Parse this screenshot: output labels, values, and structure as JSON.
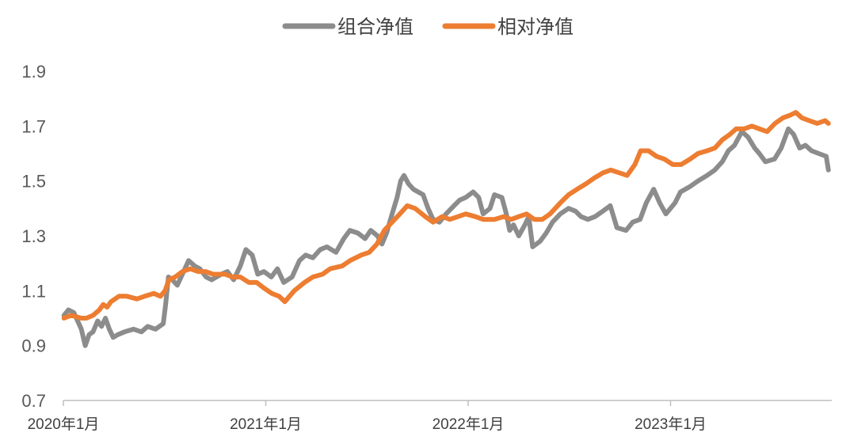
{
  "chart_data": {
    "type": "line",
    "title": "",
    "xlabel": "",
    "ylabel": "",
    "ylim": [
      0.7,
      1.9
    ],
    "yticks": [
      "0.7",
      "0.9",
      "1.1",
      "1.3",
      "1.5",
      "1.7",
      "1.9"
    ],
    "xrange": [
      "2020-01",
      "2023-10"
    ],
    "xticks": [
      {
        "label": "2020年1月",
        "date": "2020-01"
      },
      {
        "label": "2021年1月",
        "date": "2021-01"
      },
      {
        "label": "2022年1月",
        "date": "2022-01"
      },
      {
        "label": "2023年1月",
        "date": "2023-01"
      }
    ],
    "grid": false,
    "legend": "top-center",
    "series": [
      {
        "name": "组合净值",
        "color": "#8c8c8c",
        "points": [
          [
            "2020-01-02",
            1.01
          ],
          [
            "2020-01-10",
            1.03
          ],
          [
            "2020-01-20",
            1.02
          ],
          [
            "2020-02-03",
            0.96
          ],
          [
            "2020-02-10",
            0.9
          ],
          [
            "2020-02-17",
            0.94
          ],
          [
            "2020-02-24",
            0.95
          ],
          [
            "2020-03-02",
            0.99
          ],
          [
            "2020-03-09",
            0.97
          ],
          [
            "2020-03-16",
            1.0
          ],
          [
            "2020-03-23",
            0.96
          ],
          [
            "2020-03-30",
            0.93
          ],
          [
            "2020-04-08",
            0.94
          ],
          [
            "2020-04-20",
            0.95
          ],
          [
            "2020-05-06",
            0.96
          ],
          [
            "2020-05-20",
            0.95
          ],
          [
            "2020-06-01",
            0.97
          ],
          [
            "2020-06-15",
            0.96
          ],
          [
            "2020-06-29",
            0.98
          ],
          [
            "2020-07-03",
            1.05
          ],
          [
            "2020-07-08",
            1.15
          ],
          [
            "2020-07-15",
            1.14
          ],
          [
            "2020-07-24",
            1.12
          ],
          [
            "2020-08-05",
            1.17
          ],
          [
            "2020-08-14",
            1.21
          ],
          [
            "2020-08-25",
            1.19
          ],
          [
            "2020-09-04",
            1.18
          ],
          [
            "2020-09-15",
            1.15
          ],
          [
            "2020-09-25",
            1.14
          ],
          [
            "2020-10-12",
            1.16
          ],
          [
            "2020-10-23",
            1.17
          ],
          [
            "2020-11-04",
            1.14
          ],
          [
            "2020-11-16",
            1.19
          ],
          [
            "2020-11-26",
            1.25
          ],
          [
            "2020-12-07",
            1.23
          ],
          [
            "2020-12-17",
            1.16
          ],
          [
            "2020-12-28",
            1.17
          ],
          [
            "2021-01-11",
            1.15
          ],
          [
            "2021-01-22",
            1.18
          ],
          [
            "2021-02-03",
            1.13
          ],
          [
            "2021-02-18",
            1.15
          ],
          [
            "2021-03-01",
            1.21
          ],
          [
            "2021-03-12",
            1.23
          ],
          [
            "2021-03-25",
            1.22
          ],
          [
            "2021-04-08",
            1.25
          ],
          [
            "2021-04-20",
            1.26
          ],
          [
            "2021-05-06",
            1.24
          ],
          [
            "2021-05-20",
            1.29
          ],
          [
            "2021-05-31",
            1.32
          ],
          [
            "2021-06-15",
            1.31
          ],
          [
            "2021-06-28",
            1.29
          ],
          [
            "2021-07-08",
            1.32
          ],
          [
            "2021-07-20",
            1.3
          ],
          [
            "2021-07-28",
            1.27
          ],
          [
            "2021-08-06",
            1.31
          ],
          [
            "2021-08-16",
            1.38
          ],
          [
            "2021-08-25",
            1.44
          ],
          [
            "2021-09-01",
            1.5
          ],
          [
            "2021-09-07",
            1.52
          ],
          [
            "2021-09-15",
            1.49
          ],
          [
            "2021-09-24",
            1.47
          ],
          [
            "2021-10-11",
            1.45
          ],
          [
            "2021-10-20",
            1.4
          ],
          [
            "2021-10-29",
            1.36
          ],
          [
            "2021-11-10",
            1.35
          ],
          [
            "2021-11-22",
            1.38
          ],
          [
            "2021-12-06",
            1.41
          ],
          [
            "2021-12-16",
            1.43
          ],
          [
            "2021-12-27",
            1.44
          ],
          [
            "2022-01-10",
            1.46
          ],
          [
            "2022-01-20",
            1.44
          ],
          [
            "2022-01-28",
            1.38
          ],
          [
            "2022-02-10",
            1.4
          ],
          [
            "2022-02-18",
            1.45
          ],
          [
            "2022-03-01",
            1.44
          ],
          [
            "2022-03-09",
            1.38
          ],
          [
            "2022-03-15",
            1.32
          ],
          [
            "2022-03-22",
            1.34
          ],
          [
            "2022-04-01",
            1.3
          ],
          [
            "2022-04-12",
            1.34
          ],
          [
            "2022-04-19",
            1.37
          ],
          [
            "2022-04-26",
            1.26
          ],
          [
            "2022-05-09",
            1.28
          ],
          [
            "2022-05-20",
            1.31
          ],
          [
            "2022-06-01",
            1.35
          ],
          [
            "2022-06-15",
            1.38
          ],
          [
            "2022-06-30",
            1.4
          ],
          [
            "2022-07-12",
            1.39
          ],
          [
            "2022-07-22",
            1.37
          ],
          [
            "2022-08-04",
            1.36
          ],
          [
            "2022-08-17",
            1.37
          ],
          [
            "2022-08-31",
            1.39
          ],
          [
            "2022-09-14",
            1.41
          ],
          [
            "2022-09-26",
            1.33
          ],
          [
            "2022-10-12",
            1.32
          ],
          [
            "2022-10-24",
            1.35
          ],
          [
            "2022-11-07",
            1.36
          ],
          [
            "2022-11-18",
            1.42
          ],
          [
            "2022-12-01",
            1.47
          ],
          [
            "2022-12-12",
            1.42
          ],
          [
            "2022-12-23",
            1.38
          ],
          [
            "2023-01-09",
            1.42
          ],
          [
            "2023-01-19",
            1.46
          ],
          [
            "2023-02-06",
            1.48
          ],
          [
            "2023-02-20",
            1.5
          ],
          [
            "2023-03-06",
            1.52
          ],
          [
            "2023-03-20",
            1.54
          ],
          [
            "2023-04-03",
            1.57
          ],
          [
            "2023-04-14",
            1.61
          ],
          [
            "2023-04-25",
            1.63
          ],
          [
            "2023-05-08",
            1.68
          ],
          [
            "2023-05-19",
            1.66
          ],
          [
            "2023-05-31",
            1.62
          ],
          [
            "2023-06-09",
            1.6
          ],
          [
            "2023-06-20",
            1.57
          ],
          [
            "2023-07-06",
            1.58
          ],
          [
            "2023-07-18",
            1.62
          ],
          [
            "2023-07-31",
            1.69
          ],
          [
            "2023-08-10",
            1.67
          ],
          [
            "2023-08-21",
            1.62
          ],
          [
            "2023-09-01",
            1.63
          ],
          [
            "2023-09-12",
            1.61
          ],
          [
            "2023-09-25",
            1.6
          ],
          [
            "2023-10-08",
            1.59
          ],
          [
            "2023-10-12",
            1.54
          ]
        ]
      },
      {
        "name": "相对净值",
        "color": "#ed7d31",
        "points": [
          [
            "2020-01-02",
            1.0
          ],
          [
            "2020-01-15",
            1.01
          ],
          [
            "2020-02-03",
            1.0
          ],
          [
            "2020-02-12",
            1.0
          ],
          [
            "2020-02-24",
            1.01
          ],
          [
            "2020-03-05",
            1.03
          ],
          [
            "2020-03-12",
            1.05
          ],
          [
            "2020-03-19",
            1.04
          ],
          [
            "2020-03-26",
            1.06
          ],
          [
            "2020-04-10",
            1.08
          ],
          [
            "2020-04-24",
            1.08
          ],
          [
            "2020-05-12",
            1.07
          ],
          [
            "2020-05-26",
            1.08
          ],
          [
            "2020-06-12",
            1.09
          ],
          [
            "2020-06-24",
            1.08
          ],
          [
            "2020-07-02",
            1.1
          ],
          [
            "2020-07-09",
            1.14
          ],
          [
            "2020-07-20",
            1.15
          ],
          [
            "2020-08-03",
            1.17
          ],
          [
            "2020-08-17",
            1.18
          ],
          [
            "2020-08-31",
            1.17
          ],
          [
            "2020-09-14",
            1.17
          ],
          [
            "2020-09-28",
            1.16
          ],
          [
            "2020-10-19",
            1.16
          ],
          [
            "2020-11-02",
            1.15
          ],
          [
            "2020-11-16",
            1.15
          ],
          [
            "2020-12-01",
            1.13
          ],
          [
            "2020-12-15",
            1.13
          ],
          [
            "2020-12-28",
            1.11
          ],
          [
            "2021-01-12",
            1.09
          ],
          [
            "2021-01-25",
            1.08
          ],
          [
            "2021-02-05",
            1.06
          ],
          [
            "2021-02-22",
            1.1
          ],
          [
            "2021-03-10",
            1.13
          ],
          [
            "2021-03-25",
            1.15
          ],
          [
            "2021-04-12",
            1.16
          ],
          [
            "2021-04-26",
            1.18
          ],
          [
            "2021-05-17",
            1.19
          ],
          [
            "2021-06-01",
            1.21
          ],
          [
            "2021-06-21",
            1.23
          ],
          [
            "2021-07-05",
            1.24
          ],
          [
            "2021-07-19",
            1.27
          ],
          [
            "2021-08-02",
            1.32
          ],
          [
            "2021-08-16",
            1.35
          ],
          [
            "2021-08-30",
            1.38
          ],
          [
            "2021-09-13",
            1.41
          ],
          [
            "2021-09-27",
            1.4
          ],
          [
            "2021-10-15",
            1.37
          ],
          [
            "2021-10-29",
            1.35
          ],
          [
            "2021-11-15",
            1.37
          ],
          [
            "2021-11-29",
            1.36
          ],
          [
            "2021-12-13",
            1.37
          ],
          [
            "2021-12-27",
            1.38
          ],
          [
            "2022-01-14",
            1.37
          ],
          [
            "2022-01-28",
            1.36
          ],
          [
            "2022-02-18",
            1.36
          ],
          [
            "2022-03-04",
            1.37
          ],
          [
            "2022-03-18",
            1.36
          ],
          [
            "2022-04-01",
            1.37
          ],
          [
            "2022-04-15",
            1.38
          ],
          [
            "2022-04-29",
            1.36
          ],
          [
            "2022-05-13",
            1.36
          ],
          [
            "2022-05-27",
            1.38
          ],
          [
            "2022-06-15",
            1.42
          ],
          [
            "2022-06-30",
            1.45
          ],
          [
            "2022-07-15",
            1.47
          ],
          [
            "2022-08-01",
            1.49
          ],
          [
            "2022-08-15",
            1.51
          ],
          [
            "2022-09-01",
            1.53
          ],
          [
            "2022-09-15",
            1.54
          ],
          [
            "2022-09-30",
            1.53
          ],
          [
            "2022-10-14",
            1.52
          ],
          [
            "2022-10-28",
            1.56
          ],
          [
            "2022-11-08",
            1.61
          ],
          [
            "2022-11-22",
            1.61
          ],
          [
            "2022-12-06",
            1.59
          ],
          [
            "2022-12-20",
            1.58
          ],
          [
            "2023-01-05",
            1.56
          ],
          [
            "2023-01-20",
            1.56
          ],
          [
            "2023-02-06",
            1.58
          ],
          [
            "2023-02-20",
            1.6
          ],
          [
            "2023-03-06",
            1.61
          ],
          [
            "2023-03-20",
            1.62
          ],
          [
            "2023-04-03",
            1.65
          ],
          [
            "2023-04-17",
            1.67
          ],
          [
            "2023-04-28",
            1.69
          ],
          [
            "2023-05-12",
            1.69
          ],
          [
            "2023-05-26",
            1.7
          ],
          [
            "2023-06-09",
            1.69
          ],
          [
            "2023-06-23",
            1.68
          ],
          [
            "2023-07-07",
            1.71
          ],
          [
            "2023-07-21",
            1.73
          ],
          [
            "2023-08-04",
            1.74
          ],
          [
            "2023-08-14",
            1.75
          ],
          [
            "2023-08-25",
            1.73
          ],
          [
            "2023-09-08",
            1.72
          ],
          [
            "2023-09-22",
            1.71
          ],
          [
            "2023-10-06",
            1.72
          ],
          [
            "2023-10-12",
            1.71
          ]
        ]
      }
    ]
  }
}
